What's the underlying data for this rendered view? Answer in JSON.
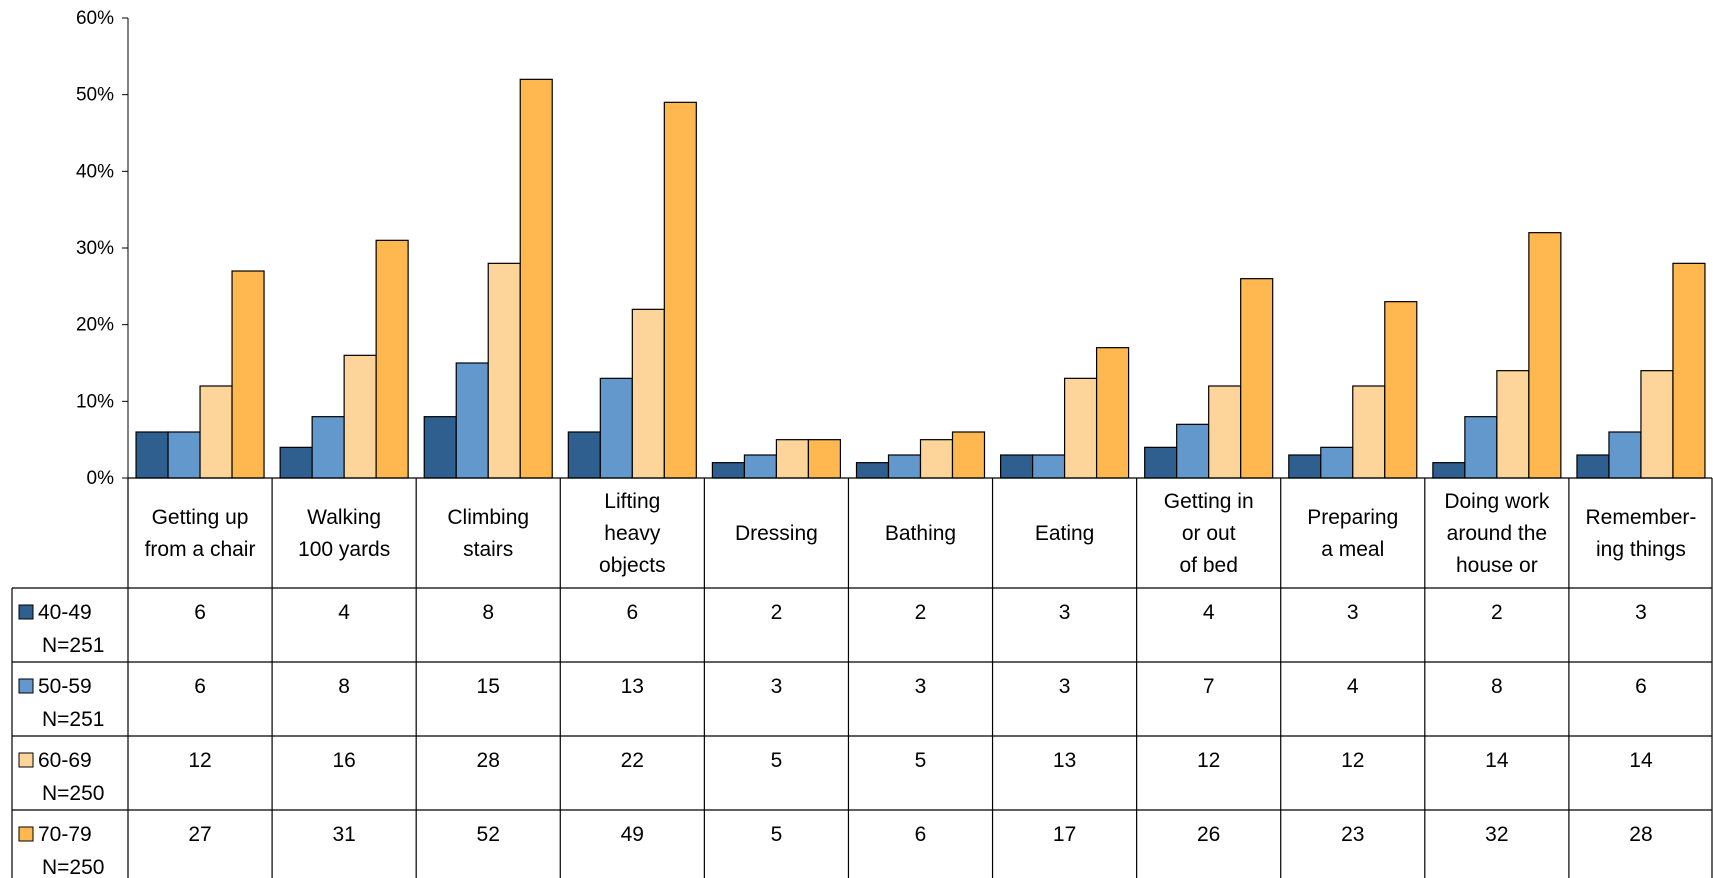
{
  "chart_data": {
    "type": "bar",
    "title": "",
    "xlabel": "",
    "ylabel": "",
    "ylim": [
      0,
      60
    ],
    "y_ticks": [
      {
        "value": 0,
        "label": "0%"
      },
      {
        "value": 10,
        "label": "10%"
      },
      {
        "value": 20,
        "label": "20%"
      },
      {
        "value": 30,
        "label": "30%"
      },
      {
        "value": 40,
        "label": "40%"
      },
      {
        "value": 50,
        "label": "50%"
      },
      {
        "value": 60,
        "label": "60%"
      }
    ],
    "grid": false,
    "legend_placement": "data table rows below chart",
    "categories": [
      [
        "Getting up",
        "from a chair"
      ],
      [
        "Walking",
        "100 yards"
      ],
      [
        "Climbing",
        "stairs"
      ],
      [
        "Lifting",
        "heavy",
        "objects"
      ],
      [
        "Dressing"
      ],
      [
        "Bathing"
      ],
      [
        "Eating"
      ],
      [
        "Getting in",
        "or out",
        "of bed"
      ],
      [
        "Preparing",
        "a meal"
      ],
      [
        "Doing work",
        "around the",
        "house or"
      ],
      [
        "Remember-",
        "ing things"
      ]
    ],
    "series": [
      {
        "name": [
          "40-49",
          "N=251"
        ],
        "color": "#2E5F8F",
        "values": [
          6,
          4,
          8,
          6,
          2,
          2,
          3,
          4,
          3,
          2,
          3
        ],
        "value_labels": [
          "6",
          "4",
          "8",
          "6",
          "2",
          "2",
          "3",
          "4",
          "3",
          "2",
          "3"
        ]
      },
      {
        "name": [
          "50-59",
          "N=251"
        ],
        "color": "#6398CC",
        "values": [
          6,
          8,
          15,
          13,
          3,
          3,
          3,
          7,
          4,
          8,
          6
        ],
        "value_labels": [
          "6",
          "8",
          "15",
          "13",
          "3",
          "3",
          "3",
          "7",
          "4",
          "8",
          "6"
        ]
      },
      {
        "name": [
          "60-69",
          "N=250"
        ],
        "color": "#FDD49A",
        "values": [
          12,
          16,
          28,
          22,
          5,
          5,
          13,
          12,
          12,
          14,
          14
        ],
        "value_labels": [
          "12",
          "16",
          "28",
          "22",
          "5",
          "5",
          "13",
          "12",
          "12",
          "14",
          "14"
        ]
      },
      {
        "name": [
          "70-79",
          "N=250"
        ],
        "color": "#FFB74F",
        "values": [
          27,
          31,
          52,
          49,
          5,
          6,
          17,
          26,
          23,
          32,
          28
        ],
        "value_labels": [
          "27",
          "31",
          "52",
          "49",
          "5",
          "6",
          "17",
          "26",
          "23",
          "32",
          "28"
        ]
      }
    ]
  }
}
